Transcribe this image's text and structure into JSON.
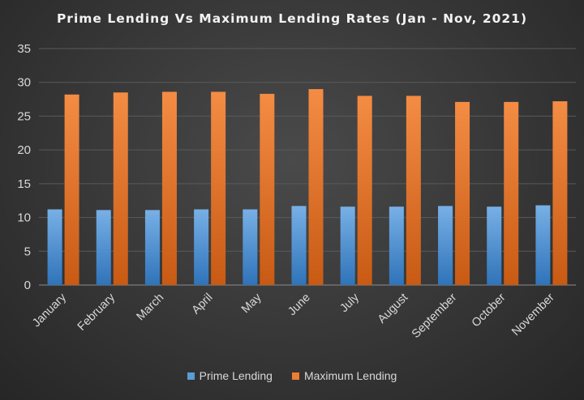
{
  "chart_data": {
    "type": "bar",
    "title": "Prime Lending Vs Maximum Lending Rates (Jan - Nov, 2021)",
    "categories": [
      "January",
      "February",
      "March",
      "April",
      "May",
      "June",
      "July",
      "August",
      "September",
      "October",
      "November"
    ],
    "series": [
      {
        "name": "Prime Lending",
        "color": "#5b9bd5",
        "values": [
          11.2,
          11.1,
          11.1,
          11.2,
          11.2,
          11.7,
          11.6,
          11.6,
          11.7,
          11.6,
          11.8
        ]
      },
      {
        "name": "Maximum Lending",
        "color": "#ed7d31",
        "values": [
          28.2,
          28.5,
          28.6,
          28.6,
          28.3,
          29.0,
          28.0,
          28.0,
          27.1,
          27.1,
          27.2
        ]
      }
    ],
    "ylim": [
      0,
      35
    ],
    "yticks": [
      0,
      5,
      10,
      15,
      20,
      25,
      30,
      35
    ],
    "grid": true,
    "legend_position": "bottom",
    "xlabel": "",
    "ylabel": ""
  }
}
